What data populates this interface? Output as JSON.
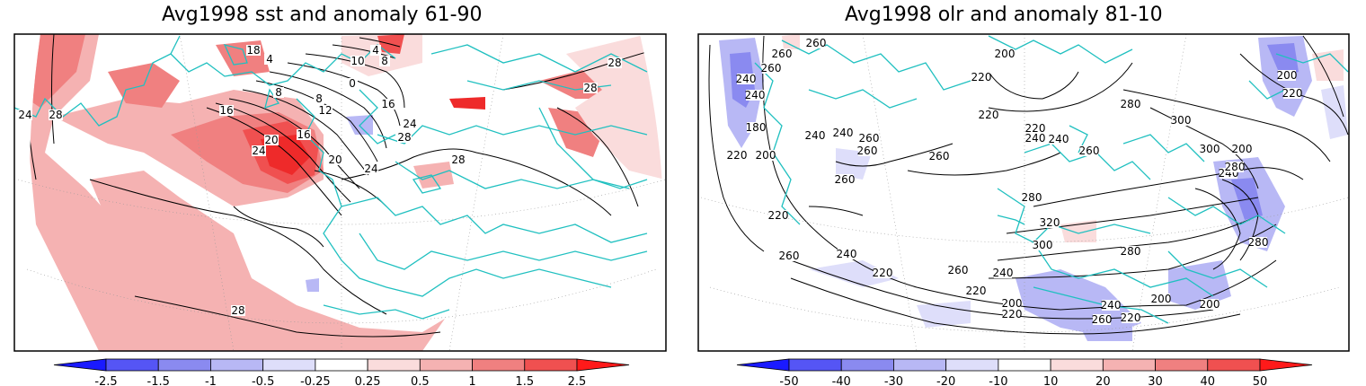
{
  "panels": [
    {
      "title": "Avg1998 sst and anomaly 61-90",
      "colorbar": {
        "ticks": [
          "-2.5",
          "-1.5",
          "-1",
          "-0.5",
          "-0.25",
          "0.25",
          "0.5",
          "1",
          "1.5",
          "2.5"
        ],
        "colors": [
          "#1a1aff",
          "#5555f5",
          "#8a8af0",
          "#b8b8f5",
          "#dedefa",
          "#ffffff",
          "#fadcdc",
          "#f5b2b2",
          "#f08080",
          "#f05050",
          "#ff1a1a"
        ]
      },
      "contour_labels": [
        "24",
        "28",
        "28",
        "28",
        "28",
        "28",
        "18",
        "8",
        "12",
        "16",
        "20",
        "24",
        "16",
        "20",
        "24",
        "24",
        "28",
        "16",
        "4",
        "4",
        "0",
        "8",
        "10",
        "8"
      ]
    },
    {
      "title": "Avg1998 olr and anomaly 81-10",
      "colorbar": {
        "ticks": [
          "-50",
          "-40",
          "-30",
          "-20",
          "-10",
          "10",
          "20",
          "30",
          "40",
          "50"
        ],
        "colors": [
          "#1a1aff",
          "#5555f5",
          "#8a8af0",
          "#b8b8f5",
          "#dedefa",
          "#ffffff",
          "#fadcdc",
          "#f5b2b2",
          "#f08080",
          "#f05050",
          "#ff1a1a"
        ]
      },
      "contour_labels": [
        "260",
        "260",
        "260",
        "240",
        "240",
        "200",
        "220",
        "220",
        "220",
        "240",
        "240",
        "260",
        "280",
        "300",
        "200",
        "220",
        "200",
        "180",
        "220",
        "200",
        "260",
        "240",
        "260",
        "260",
        "240",
        "260",
        "220",
        "280",
        "320",
        "300",
        "280",
        "240",
        "260",
        "220",
        "240",
        "220",
        "260",
        "240",
        "220",
        "200",
        "200",
        "260",
        "200",
        "220",
        "280",
        "300",
        "240",
        "280"
      ]
    }
  ],
  "colors": {
    "map_outline": "#20c0c0",
    "contour": "#000000",
    "frame": "#000000"
  }
}
